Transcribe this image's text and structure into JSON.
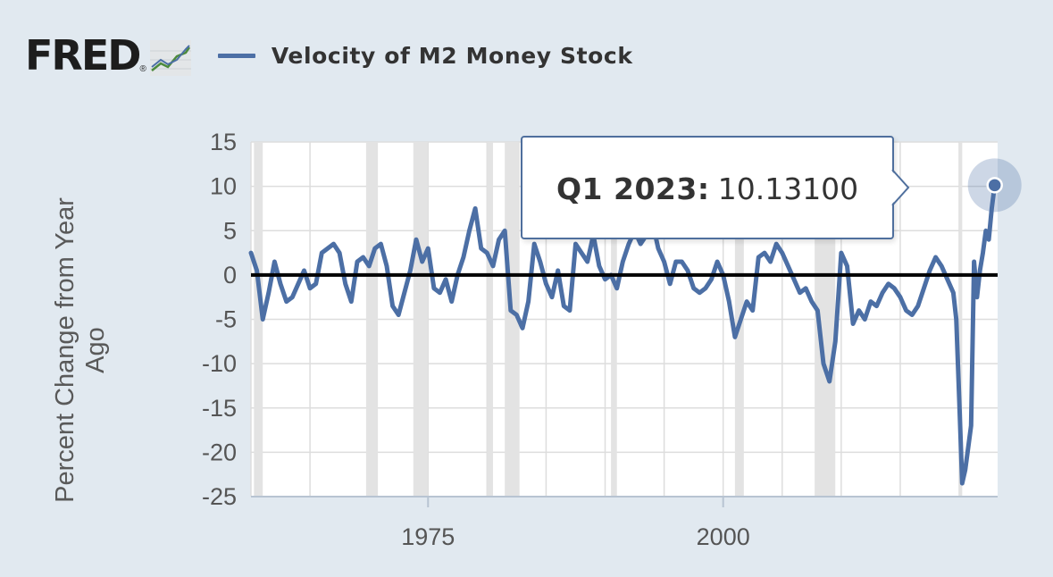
{
  "header": {
    "logo_text": "FRED",
    "logo_mark": "®",
    "logo_icon": "line-graph-icon",
    "legend_label": "Velocity of M2 Money Stock",
    "legend_color": "#4c6fa5"
  },
  "tooltip": {
    "date": "Q1 2023:",
    "value": "10.13100"
  },
  "colors": {
    "background": "#e1e9f0",
    "plot_background": "#ffffff",
    "series": "#4c6fa5",
    "recession_band": "#e3e3e3",
    "grid": "#dddddd",
    "zero_line": "#000000"
  },
  "chart_data": {
    "type": "line",
    "title": "Velocity of M2 Money Stock",
    "xlabel": "",
    "ylabel": "Percent Change from Year Ago",
    "x_range": [
      1960.0,
      2023.25
    ],
    "ylim": [
      -25,
      15
    ],
    "yticks": [
      15,
      10,
      5,
      0,
      -5,
      -10,
      -15,
      -20,
      -25
    ],
    "xticks": [
      1975,
      2000
    ],
    "grid": "vertical and horizontal",
    "legend_position": "top",
    "recession_bands": [
      [
        1960.25,
        1961.0
      ],
      [
        1969.75,
        1970.75
      ],
      [
        1973.75,
        1975.0
      ],
      [
        1980.0,
        1980.5
      ],
      [
        1981.5,
        1982.75
      ],
      [
        1990.5,
        1991.0
      ],
      [
        2001.0,
        2001.75
      ],
      [
        2007.75,
        2009.5
      ],
      [
        2020.0,
        2020.25
      ]
    ],
    "series": [
      {
        "name": "Velocity of M2 Money Stock",
        "points": [
          [
            1960.0,
            2.5
          ],
          [
            1960.5,
            0.5
          ],
          [
            1961.0,
            -5.0
          ],
          [
            1961.5,
            -2.0
          ],
          [
            1962.0,
            1.5
          ],
          [
            1962.5,
            -1.0
          ],
          [
            1963.0,
            -3.0
          ],
          [
            1963.5,
            -2.5
          ],
          [
            1964.0,
            -1.0
          ],
          [
            1964.5,
            0.5
          ],
          [
            1965.0,
            -1.5
          ],
          [
            1965.5,
            -1.0
          ],
          [
            1966.0,
            2.5
          ],
          [
            1966.5,
            3.0
          ],
          [
            1967.0,
            3.5
          ],
          [
            1967.5,
            2.5
          ],
          [
            1968.0,
            -1.0
          ],
          [
            1968.5,
            -3.0
          ],
          [
            1969.0,
            1.5
          ],
          [
            1969.5,
            2.0
          ],
          [
            1970.0,
            1.0
          ],
          [
            1970.5,
            3.0
          ],
          [
            1971.0,
            3.5
          ],
          [
            1971.5,
            1.0
          ],
          [
            1972.0,
            -3.5
          ],
          [
            1972.5,
            -4.5
          ],
          [
            1973.0,
            -2.0
          ],
          [
            1973.5,
            0.5
          ],
          [
            1974.0,
            4.0
          ],
          [
            1974.5,
            1.5
          ],
          [
            1975.0,
            3.0
          ],
          [
            1975.5,
            -1.5
          ],
          [
            1976.0,
            -2.0
          ],
          [
            1976.5,
            -0.5
          ],
          [
            1977.0,
            -3.0
          ],
          [
            1977.5,
            0.0
          ],
          [
            1978.0,
            2.0
          ],
          [
            1978.5,
            5.0
          ],
          [
            1979.0,
            7.5
          ],
          [
            1979.5,
            3.0
          ],
          [
            1980.0,
            2.5
          ],
          [
            1980.5,
            1.0
          ],
          [
            1981.0,
            4.0
          ],
          [
            1981.5,
            5.0
          ],
          [
            1982.0,
            -4.0
          ],
          [
            1982.5,
            -4.5
          ],
          [
            1983.0,
            -6.0
          ],
          [
            1983.5,
            -3.0
          ],
          [
            1984.0,
            3.5
          ],
          [
            1984.5,
            1.5
          ],
          [
            1985.0,
            -1.0
          ],
          [
            1985.5,
            -2.5
          ],
          [
            1986.0,
            0.5
          ],
          [
            1986.5,
            -3.5
          ],
          [
            1987.0,
            -4.0
          ],
          [
            1987.5,
            3.5
          ],
          [
            1988.0,
            2.5
          ],
          [
            1988.5,
            1.5
          ],
          [
            1989.0,
            4.5
          ],
          [
            1989.5,
            1.0
          ],
          [
            1990.0,
            -0.5
          ],
          [
            1990.5,
            0.0
          ],
          [
            1991.0,
            -1.5
          ],
          [
            1991.5,
            1.5
          ],
          [
            1992.0,
            3.5
          ],
          [
            1992.5,
            5.0
          ],
          [
            1993.0,
            3.5
          ],
          [
            1993.5,
            4.5
          ],
          [
            1994.0,
            6.0
          ],
          [
            1994.5,
            3.0
          ],
          [
            1995.0,
            1.5
          ],
          [
            1995.5,
            -1.0
          ],
          [
            1996.0,
            1.5
          ],
          [
            1996.5,
            1.5
          ],
          [
            1997.0,
            0.5
          ],
          [
            1997.5,
            -1.5
          ],
          [
            1998.0,
            -2.0
          ],
          [
            1998.5,
            -1.5
          ],
          [
            1999.0,
            -0.5
          ],
          [
            1999.5,
            1.5
          ],
          [
            2000.0,
            0.0
          ],
          [
            2000.5,
            -3.0
          ],
          [
            2001.0,
            -7.0
          ],
          [
            2001.5,
            -5.0
          ],
          [
            2002.0,
            -3.0
          ],
          [
            2002.5,
            -4.0
          ],
          [
            2003.0,
            2.0
          ],
          [
            2003.5,
            2.5
          ],
          [
            2004.0,
            1.5
          ],
          [
            2004.5,
            3.5
          ],
          [
            2005.0,
            2.5
          ],
          [
            2005.5,
            1.0
          ],
          [
            2006.0,
            -0.5
          ],
          [
            2006.5,
            -2.0
          ],
          [
            2007.0,
            -1.5
          ],
          [
            2007.5,
            -3.0
          ],
          [
            2008.0,
            -4.0
          ],
          [
            2008.5,
            -10.0
          ],
          [
            2009.0,
            -12.0
          ],
          [
            2009.5,
            -7.5
          ],
          [
            2010.0,
            2.5
          ],
          [
            2010.5,
            1.0
          ],
          [
            2011.0,
            -5.5
          ],
          [
            2011.5,
            -4.0
          ],
          [
            2012.0,
            -5.0
          ],
          [
            2012.5,
            -3.0
          ],
          [
            2013.0,
            -3.5
          ],
          [
            2013.5,
            -2.0
          ],
          [
            2014.0,
            -1.0
          ],
          [
            2014.5,
            -1.5
          ],
          [
            2015.0,
            -2.5
          ],
          [
            2015.5,
            -4.0
          ],
          [
            2016.0,
            -4.5
          ],
          [
            2016.5,
            -3.5
          ],
          [
            2017.0,
            -1.5
          ],
          [
            2017.5,
            0.5
          ],
          [
            2018.0,
            2.0
          ],
          [
            2018.5,
            1.0
          ],
          [
            2019.0,
            -0.5
          ],
          [
            2019.5,
            -2.0
          ],
          [
            2019.75,
            -5.0
          ],
          [
            2020.0,
            -14.0
          ],
          [
            2020.25,
            -23.5
          ],
          [
            2020.5,
            -22.0
          ],
          [
            2020.75,
            -19.5
          ],
          [
            2021.0,
            -17.0
          ],
          [
            2021.25,
            1.5
          ],
          [
            2021.5,
            -2.5
          ],
          [
            2021.75,
            0.5
          ],
          [
            2022.0,
            2.5
          ],
          [
            2022.25,
            5.0
          ],
          [
            2022.5,
            4.0
          ],
          [
            2022.75,
            7.5
          ],
          [
            2023.0,
            10.131
          ]
        ]
      }
    ],
    "highlight": {
      "x": 2023.0,
      "y": 10.131
    }
  }
}
